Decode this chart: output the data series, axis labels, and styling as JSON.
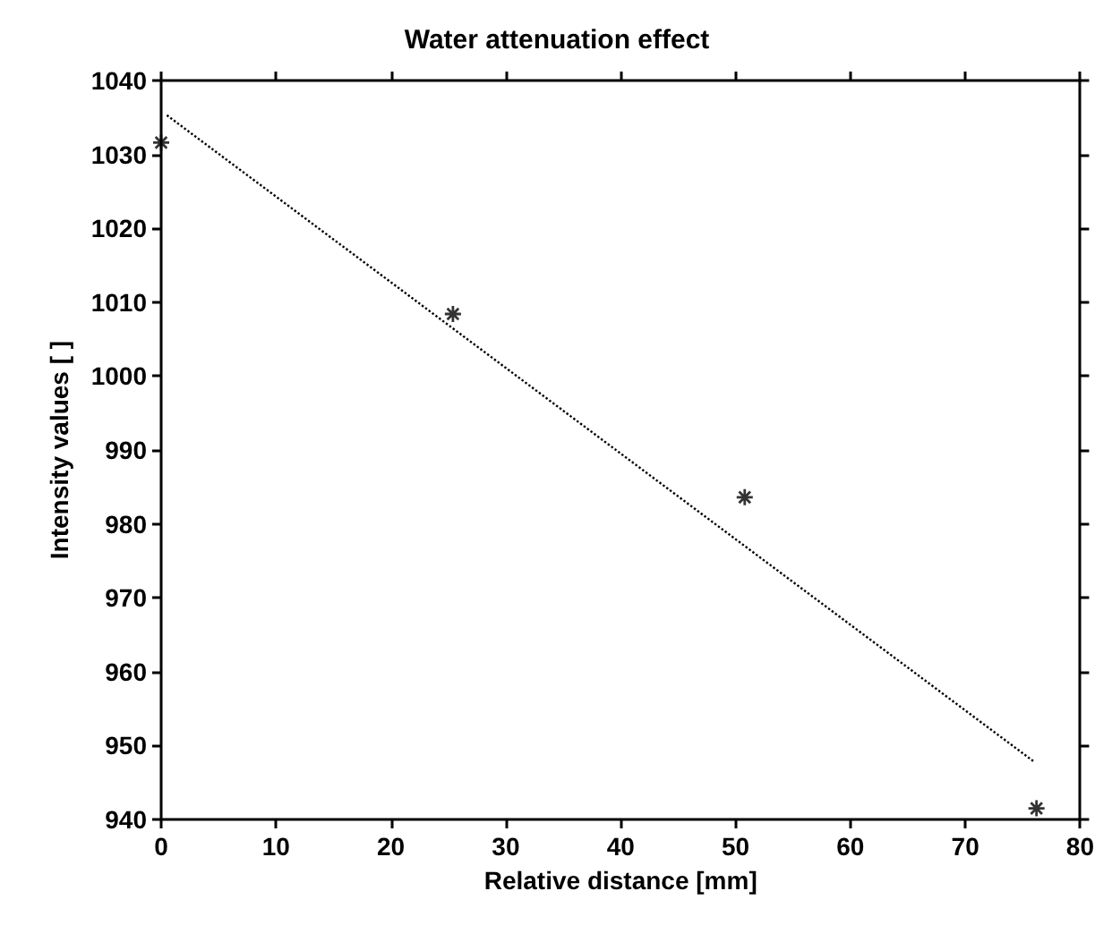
{
  "chart_data": {
    "type": "scatter",
    "title": "Water attenuation effect",
    "xlabel": "Relative distance [mm]",
    "ylabel": "Intensity values [ ]",
    "series": [
      {
        "x": [
          0,
          25.4,
          50.8,
          76.2
        ],
        "values": [
          1031.6,
          1008.4,
          983.6,
          941.5
        ],
        "color": "#000000",
        "marker": "cross"
      },
      {
        "type": "line",
        "x": [
          0.5,
          76
        ],
        "values": [
          1035.3,
          947.8
        ],
        "color": "#000000",
        "line_style": "dotted",
        "marker": "none"
      }
    ],
    "xlim": [
      0,
      80
    ],
    "xticks": [
      0,
      10,
      20,
      30,
      40,
      50,
      60,
      70,
      80
    ],
    "ylim": [
      940,
      1040
    ],
    "yticks": [
      940,
      950,
      960,
      970,
      980,
      990,
      1000,
      1010,
      1020,
      1030,
      1040
    ],
    "grid": false
  }
}
